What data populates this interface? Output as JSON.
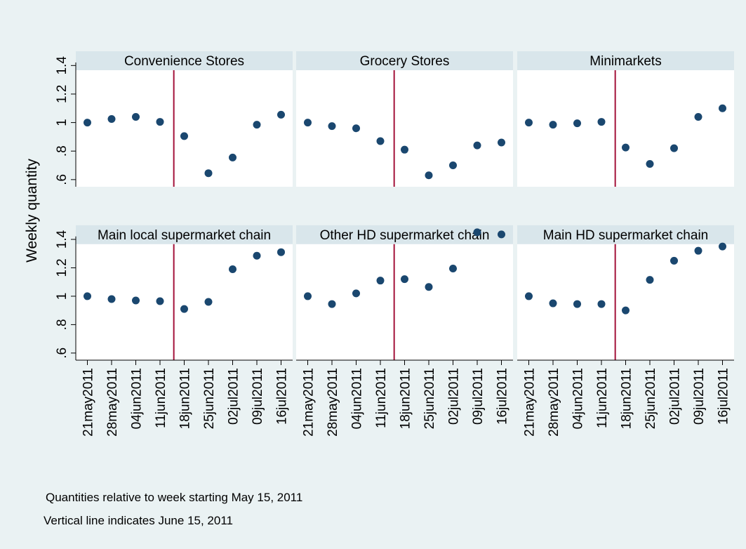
{
  "y_label": "Weekly quantity",
  "notes": [
    "Quantities relative to week starting May 15, 2011",
    "Vertical line indicates June 15, 2011"
  ],
  "chart_data": [
    {
      "type": "scatter",
      "title": "Convenience Stores",
      "color": "#1a476f",
      "categories": [
        "21may2011",
        "28may2011",
        "04jun2011",
        "11jun2011",
        "18jun2011",
        "25jun2011",
        "02jul2011",
        "09jul2011",
        "16jul2011"
      ],
      "values": [
        1.0,
        1.025,
        1.04,
        1.005,
        0.905,
        0.645,
        0.755,
        0.985,
        1.055
      ],
      "ylim": [
        0.55,
        1.5
      ],
      "yticks": [
        {
          "value": 0.6,
          "label": ".6"
        },
        {
          "value": 0.8,
          "label": ".8"
        },
        1,
        1.2,
        1.4
      ]
    },
    {
      "type": "scatter",
      "title": "Grocery Stores",
      "color": "#1a476f",
      "categories": [
        "21may2011",
        "28may2011",
        "04jun2011",
        "11jun2011",
        "18jun2011",
        "25jun2011",
        "02jul2011",
        "09jul2011",
        "16jul2011"
      ],
      "values": [
        1.0,
        0.975,
        0.96,
        0.87,
        0.81,
        0.63,
        0.7,
        0.84,
        0.86
      ],
      "ylim": [
        0.55,
        1.5
      ]
    },
    {
      "type": "scatter",
      "title": "Minimarkets",
      "color": "#1a476f",
      "categories": [
        "21may2011",
        "28may2011",
        "04jun2011",
        "11jun2011",
        "18jun2011",
        "25jun2011",
        "02jul2011",
        "09jul2011",
        "16jul2011"
      ],
      "values": [
        1.0,
        0.985,
        0.995,
        1.005,
        0.825,
        0.71,
        0.82,
        1.04,
        1.1
      ],
      "ylim": [
        0.55,
        1.5
      ]
    },
    {
      "type": "scatter",
      "title": "Main local supermarket chain",
      "color": "#1a476f",
      "categories": [
        "21may2011",
        "28may2011",
        "04jun2011",
        "11jun2011",
        "18jun2011",
        "25jun2011",
        "02jul2011",
        "09jul2011",
        "16jul2011"
      ],
      "values": [
        1.0,
        0.98,
        0.97,
        0.965,
        0.91,
        0.96,
        1.19,
        1.285,
        1.31
      ],
      "ylim": [
        0.55,
        1.5
      ],
      "yticks": [
        {
          "value": 0.6,
          "label": ".6"
        },
        {
          "value": 0.8,
          "label": ".8"
        },
        1,
        1.2,
        1.4
      ]
    },
    {
      "type": "scatter",
      "title": "Other HD supermarket chain",
      "color": "#1a476f",
      "categories": [
        "21may2011",
        "28may2011",
        "04jun2011",
        "11jun2011",
        "18jun2011",
        "25jun2011",
        "02jul2011",
        "09jul2011",
        "16jul2011"
      ],
      "values": [
        1.0,
        0.945,
        1.02,
        1.11,
        1.12,
        1.065,
        1.195,
        1.45,
        1.435
      ],
      "ylim": [
        0.55,
        1.5
      ]
    },
    {
      "type": "scatter",
      "title": "Main HD supermarket chain",
      "color": "#1a476f",
      "categories": [
        "21may2011",
        "28may2011",
        "04jun2011",
        "11jun2011",
        "18jun2011",
        "25jun2011",
        "02jul2011",
        "09jul2011",
        "16jul2011"
      ],
      "values": [
        1.0,
        0.95,
        0.945,
        0.945,
        0.9,
        1.115,
        1.25,
        1.32,
        1.35
      ],
      "ylim": [
        0.55,
        1.5
      ]
    }
  ]
}
